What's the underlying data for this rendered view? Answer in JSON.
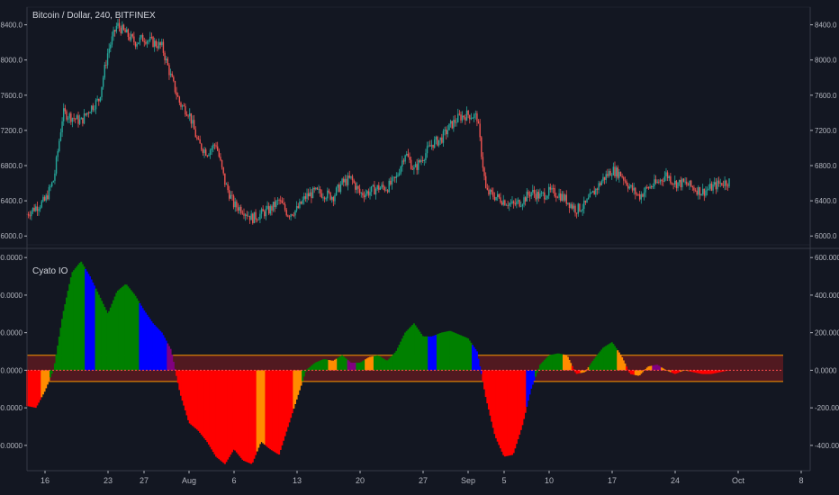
{
  "chart_data": [
    {
      "type": "candlestick",
      "title": "Bitcoin / Dollar, 240, BITFINEX",
      "ylim": [
        5900,
        8600
      ],
      "y_ticks": [
        "6000.0",
        "6400.0",
        "6800.0",
        "7200.0",
        "7600.0",
        "8000.0",
        "8400.0"
      ],
      "y_tick_values": [
        6000,
        6400,
        6800,
        7200,
        7600,
        8000,
        8400
      ],
      "up_color": "#26a69a",
      "down_color": "#ef5350",
      "x_day": [
        14,
        15,
        16,
        17,
        18,
        19,
        20,
        21,
        22,
        23,
        24,
        25,
        26,
        27,
        28,
        29,
        30,
        31,
        32,
        33,
        34,
        35,
        36,
        37,
        38,
        39,
        40,
        41,
        42,
        43,
        44,
        45,
        46,
        47,
        48,
        49,
        50,
        51,
        52,
        53,
        54,
        55,
        56,
        57,
        58,
        59,
        60,
        61,
        62,
        63,
        64,
        65,
        66,
        67,
        68,
        69,
        70,
        71,
        72,
        73,
        74,
        75,
        76,
        77,
        78,
        79,
        80,
        81,
        82,
        83,
        84,
        85,
        86,
        87,
        88,
        89,
        90,
        91,
        92
      ],
      "close_path": [
        6250,
        6330,
        6400,
        6650,
        7400,
        7350,
        7300,
        7450,
        7550,
        8100,
        8400,
        8300,
        8200,
        8250,
        8200,
        8150,
        7800,
        7500,
        7400,
        7050,
        6950,
        7050,
        6600,
        6350,
        6300,
        6200,
        6250,
        6300,
        6400,
        6250,
        6300,
        6450,
        6500,
        6480,
        6450,
        6600,
        6650,
        6480,
        6500,
        6550,
        6550,
        6650,
        6950,
        6750,
        6900,
        7050,
        7100,
        7250,
        7350,
        7380,
        7350,
        6500,
        6450,
        6400,
        6350,
        6400,
        6500,
        6450,
        6500,
        6480,
        6400,
        6300,
        6350,
        6500,
        6650,
        6750,
        6700,
        6550,
        6450,
        6550,
        6600,
        6700,
        6600,
        6600,
        6550,
        6500,
        6550,
        6600,
        6620
      ]
    },
    {
      "type": "histogram",
      "title": "Cyato IO",
      "ylim": [
        -530,
        620
      ],
      "y_ticks": [
        "600.0000",
        "400.0000",
        "200.0000",
        "0.0000",
        "-200.0000",
        "-400.0000"
      ],
      "y_tick_values": [
        600,
        400,
        200,
        0,
        -200,
        -400
      ],
      "upper_band": 80,
      "lower_band": -60,
      "band_line_color": "#ff9800",
      "band_fill_color": "#5d1a20",
      "bar_colors": {
        "green": "#008000",
        "red": "#ff0000",
        "blue": "#0000ff",
        "orange": "#ff8c00",
        "purple": "#800080"
      },
      "x_day": [
        14,
        15,
        16,
        17,
        18,
        19,
        20,
        21,
        22,
        23,
        24,
        25,
        26,
        27,
        28,
        29,
        30,
        31,
        32,
        33,
        34,
        35,
        36,
        37,
        38,
        39,
        40,
        41,
        42,
        43,
        44,
        45,
        46,
        47,
        48,
        49,
        50,
        51,
        52,
        53,
        54,
        55,
        56,
        57,
        58,
        59,
        60,
        61,
        62,
        63,
        64,
        65,
        66,
        67,
        68,
        69,
        70,
        71,
        72,
        73,
        74,
        75,
        76,
        77,
        78,
        79,
        80,
        81,
        82,
        83,
        84,
        85,
        86,
        87,
        88,
        89,
        90,
        91,
        92
      ],
      "values": [
        -190,
        -200,
        -110,
        10,
        300,
        520,
        580,
        500,
        400,
        300,
        420,
        460,
        400,
        320,
        250,
        200,
        110,
        -120,
        -280,
        -320,
        -380,
        -460,
        -500,
        -420,
        -480,
        -500,
        -380,
        -420,
        -450,
        -300,
        -150,
        0,
        40,
        60,
        50,
        80,
        40,
        40,
        70,
        80,
        50,
        100,
        200,
        250,
        180,
        180,
        200,
        210,
        190,
        170,
        100,
        -150,
        -350,
        -460,
        -450,
        -300,
        -100,
        30,
        80,
        90,
        80,
        -20,
        -10,
        60,
        120,
        150,
        80,
        -20,
        -30,
        20,
        30,
        0,
        -20,
        0,
        -10,
        -20,
        -20,
        -10,
        0
      ],
      "value_colors": [
        "red",
        "red",
        "orange",
        "green",
        "green",
        "green",
        "green",
        "blue",
        "green",
        "green",
        "green",
        "green",
        "green",
        "blue",
        "blue",
        "blue",
        "purple",
        "red",
        "red",
        "red",
        "red",
        "red",
        "red",
        "red",
        "red",
        "red",
        "orange",
        "red",
        "red",
        "red",
        "orange",
        "green",
        "green",
        "green",
        "orange",
        "green",
        "purple",
        "green",
        "orange",
        "green",
        "green",
        "green",
        "green",
        "green",
        "green",
        "blue",
        "green",
        "green",
        "green",
        "green",
        "blue",
        "red",
        "red",
        "red",
        "red",
        "red",
        "blue",
        "green",
        "green",
        "green",
        "orange",
        "red",
        "orange",
        "green",
        "green",
        "green",
        "orange",
        "red",
        "orange",
        "orange",
        "purple",
        "orange",
        "red",
        "orange",
        "red",
        "red",
        "red",
        "red",
        "red"
      ]
    }
  ],
  "x_axis": {
    "labels": [
      "16",
      "23",
      "27",
      "Aug",
      "6",
      "13",
      "20",
      "27",
      "Sep",
      "5",
      "10",
      "17",
      "24",
      "Oct",
      "8"
    ],
    "label_days": [
      16,
      23,
      27,
      32,
      37,
      44,
      51,
      58,
      63,
      67,
      72,
      79,
      86,
      93,
      100
    ]
  },
  "colors": {
    "background": "#131722",
    "text": "#b2b5be",
    "divider": "#363a45"
  }
}
